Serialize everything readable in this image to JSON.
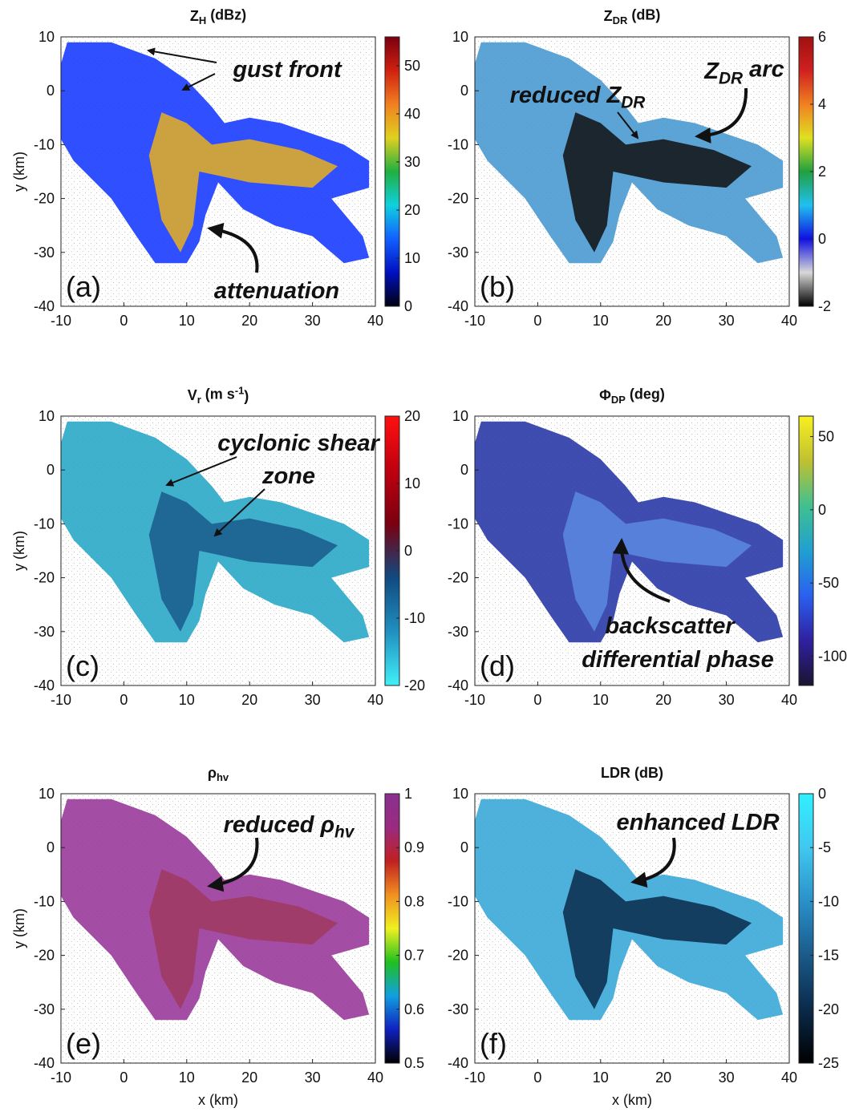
{
  "chart_data": [
    {
      "type": "heatmap",
      "panel_label": "(a)",
      "title": [
        {
          "text": "Z"
        },
        {
          "text": "H",
          "sub": true
        },
        {
          "text": " (dBz)"
        }
      ],
      "ylabel": "y (km)",
      "xlim": [
        -10,
        40
      ],
      "ylim": [
        -40,
        10
      ],
      "xticks": [
        -10,
        0,
        10,
        20,
        30,
        40
      ],
      "yticks": [
        -40,
        -30,
        -20,
        -10,
        0,
        10
      ],
      "colorbar": {
        "lim": [
          0,
          56
        ],
        "ticks": [
          0,
          10,
          20,
          30,
          40,
          50
        ],
        "colors": [
          "#000010",
          "#0010c0",
          "#1060ff",
          "#10d0e0",
          "#20b040",
          "#e0d020",
          "#f08020",
          "#d02010",
          "#7a0010"
        ]
      },
      "annotations": [
        [
          {
            "text": "gust front"
          }
        ],
        [
          {
            "text": "attenuation"
          }
        ]
      ]
    },
    {
      "type": "heatmap",
      "panel_label": "(b)",
      "title": [
        {
          "text": "Z"
        },
        {
          "text": "DR",
          "sub": true
        },
        {
          "text": " (dB)"
        }
      ],
      "xlim": [
        -10,
        40
      ],
      "ylim": [
        -40,
        10
      ],
      "xticks": [
        -10,
        0,
        10,
        20,
        30,
        40
      ],
      "yticks": [
        -40,
        -30,
        -20,
        -10,
        0,
        10
      ],
      "colorbar": {
        "lim": [
          -2,
          6
        ],
        "ticks": [
          -2,
          0,
          2,
          4,
          6
        ],
        "colors": [
          "#000000",
          "#d8d8d8",
          "#1010e0",
          "#20c0f0",
          "#20a040",
          "#e0e020",
          "#f08020",
          "#d02020",
          "#a01010"
        ]
      },
      "annotations": [
        [
          {
            "text": "reduced Z"
          },
          {
            "text": "DR",
            "sub": true
          }
        ],
        [
          {
            "text": "Z"
          },
          {
            "text": "DR",
            "sub": true
          },
          {
            "text": " arc"
          }
        ]
      ]
    },
    {
      "type": "heatmap",
      "panel_label": "(c)",
      "title": [
        {
          "text": "V"
        },
        {
          "text": "r",
          "sub": true
        },
        {
          "text": " (m s"
        },
        {
          "text": "-1",
          "sup": true
        },
        {
          "text": ")"
        }
      ],
      "ylabel": "y (km)",
      "xlim": [
        -10,
        40
      ],
      "ylim": [
        -40,
        10
      ],
      "xticks": [
        -10,
        0,
        10,
        20,
        30,
        40
      ],
      "yticks": [
        -40,
        -30,
        -20,
        -10,
        0,
        10
      ],
      "colorbar": {
        "lim": [
          -20,
          20
        ],
        "ticks": [
          -20,
          -10,
          0,
          10,
          20
        ],
        "colors": [
          "#40f0f8",
          "#2090c0",
          "#104a80",
          "#7a0010",
          "#c00010",
          "#ff1010"
        ]
      },
      "annotations": [
        [
          {
            "text": "cyclonic shear"
          }
        ],
        [
          {
            "text": "zone"
          }
        ]
      ]
    },
    {
      "type": "heatmap",
      "panel_label": "(d)",
      "title": [
        {
          "text": "Φ"
        },
        {
          "text": "DP",
          "sub": true
        },
        {
          "text": " (deg)"
        }
      ],
      "xlim": [
        -10,
        40
      ],
      "ylim": [
        -40,
        10
      ],
      "xticks": [
        -10,
        0,
        10,
        20,
        30,
        40
      ],
      "yticks": [
        -40,
        -30,
        -20,
        -10,
        0,
        10
      ],
      "colorbar": {
        "lim": [
          -120,
          64
        ],
        "ticks": [
          -100,
          -50,
          0,
          50
        ],
        "colors": [
          "#1a1430",
          "#3020a0",
          "#2a60f0",
          "#20a0d0",
          "#40c090",
          "#c0c030",
          "#f8f020"
        ]
      },
      "annotations": [
        [
          {
            "text": "backscatter"
          }
        ],
        [
          {
            "text": "differential phase"
          }
        ]
      ]
    },
    {
      "type": "heatmap",
      "panel_label": "(e)",
      "title": [
        {
          "text": "ρ"
        },
        {
          "text": "hv",
          "sub": true
        }
      ],
      "ylabel": "y (km)",
      "xlabel": "x (km)",
      "xlim": [
        -10,
        40
      ],
      "ylim": [
        -40,
        10
      ],
      "xticks": [
        -10,
        0,
        10,
        20,
        30,
        40
      ],
      "yticks": [
        -40,
        -30,
        -20,
        -10,
        0,
        10
      ],
      "colorbar": {
        "lim": [
          0.5,
          1
        ],
        "ticks": [
          0.5,
          0.6,
          0.7,
          0.8,
          0.9,
          1
        ],
        "colors": [
          "#000000",
          "#1020c0",
          "#10a0e0",
          "#20c020",
          "#f0f020",
          "#f09020",
          "#c02020",
          "#9a2a80",
          "#8a3090"
        ]
      },
      "annotations": [
        [
          {
            "text": "reduced ρ"
          },
          {
            "text": "hv",
            "sub": true
          }
        ]
      ]
    },
    {
      "type": "heatmap",
      "panel_label": "(f)",
      "title": [
        {
          "text": "LDR (dB)"
        }
      ],
      "xlabel": "x (km)",
      "xlim": [
        -10,
        40
      ],
      "ylim": [
        -40,
        10
      ],
      "xticks": [
        -10,
        0,
        10,
        20,
        30,
        40
      ],
      "yticks": [
        -40,
        -30,
        -20,
        -10,
        0,
        10
      ],
      "colorbar": {
        "lim": [
          -25,
          0
        ],
        "ticks": [
          -25,
          -20,
          -15,
          -10,
          -5,
          0
        ],
        "colors": [
          "#000000",
          "#0a2a4a",
          "#1a5a8a",
          "#2a90c8",
          "#40c8f0",
          "#30f0ff"
        ]
      },
      "annotations": [
        [
          {
            "text": "enhanced LDR"
          }
        ]
      ]
    }
  ]
}
